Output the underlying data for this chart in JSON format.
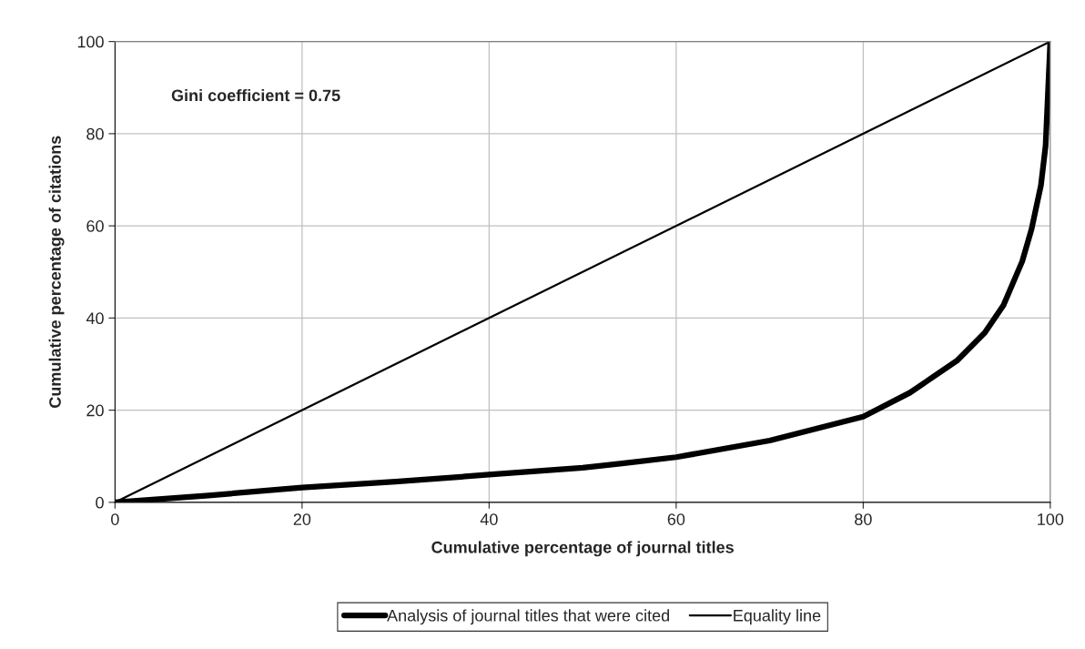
{
  "chart_data": {
    "type": "line",
    "xlabel": "Cumulative percentage of journal titles",
    "ylabel": "Cumulative percentage of citations",
    "annotations": [
      "Gini coefficient = 0.75"
    ],
    "series": [
      {
        "name": "Analysis of journal titles that were cited",
        "color": "#000000",
        "x": [
          0,
          10,
          20,
          30,
          40,
          50,
          54,
          60,
          70,
          80,
          85,
          90,
          93,
          95,
          97,
          98,
          99,
          99.5,
          100
        ],
        "values": [
          0,
          1.5,
          3.2,
          4.5,
          6.0,
          7.5,
          8.4,
          9.8,
          13.4,
          18.6,
          23.8,
          30.7,
          36.8,
          42.8,
          52.3,
          59.3,
          68.8,
          77.4,
          100
        ]
      },
      {
        "name": "Equality line",
        "color": "#000000",
        "x": [
          0,
          100
        ],
        "values": [
          0,
          100
        ]
      }
    ],
    "xlim": [
      0,
      100
    ],
    "ylim": [
      0,
      100
    ],
    "xticks": [
      0,
      20,
      40,
      60,
      80,
      100
    ],
    "yticks": [
      0,
      20,
      40,
      60,
      80,
      100
    ],
    "grid": true,
    "legend": "bottom"
  }
}
